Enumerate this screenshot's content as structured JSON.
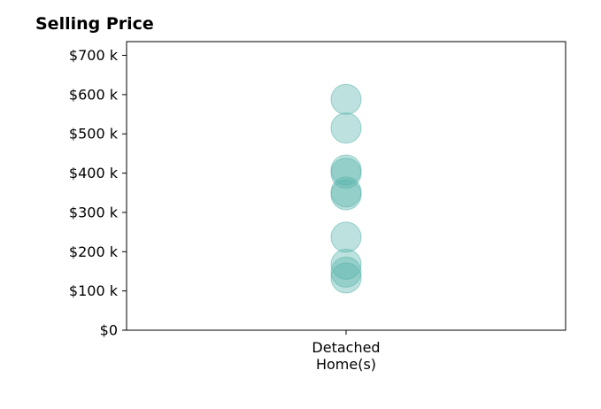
{
  "chart_data": {
    "type": "scatter",
    "title": "Selling Price",
    "xlabel": "",
    "ylabel": "",
    "categories": [
      "Detached\nHome(s)"
    ],
    "y_ticks": [
      0,
      100,
      200,
      300,
      400,
      500,
      600,
      700
    ],
    "y_tick_labels": [
      "$0",
      "$100 k",
      "$200 k",
      "$300 k",
      "$400 k",
      "$500 k",
      "$600 k",
      "$700 k"
    ],
    "ylim": [
      0,
      735
    ],
    "grid": false,
    "series": [
      {
        "category": "Detached\nHome(s)",
        "values": [
          588,
          515,
          408,
          400,
          352,
          345,
          237,
          168,
          148,
          133
        ],
        "color": "#5ab4ac",
        "opacity": 0.4
      }
    ]
  }
}
